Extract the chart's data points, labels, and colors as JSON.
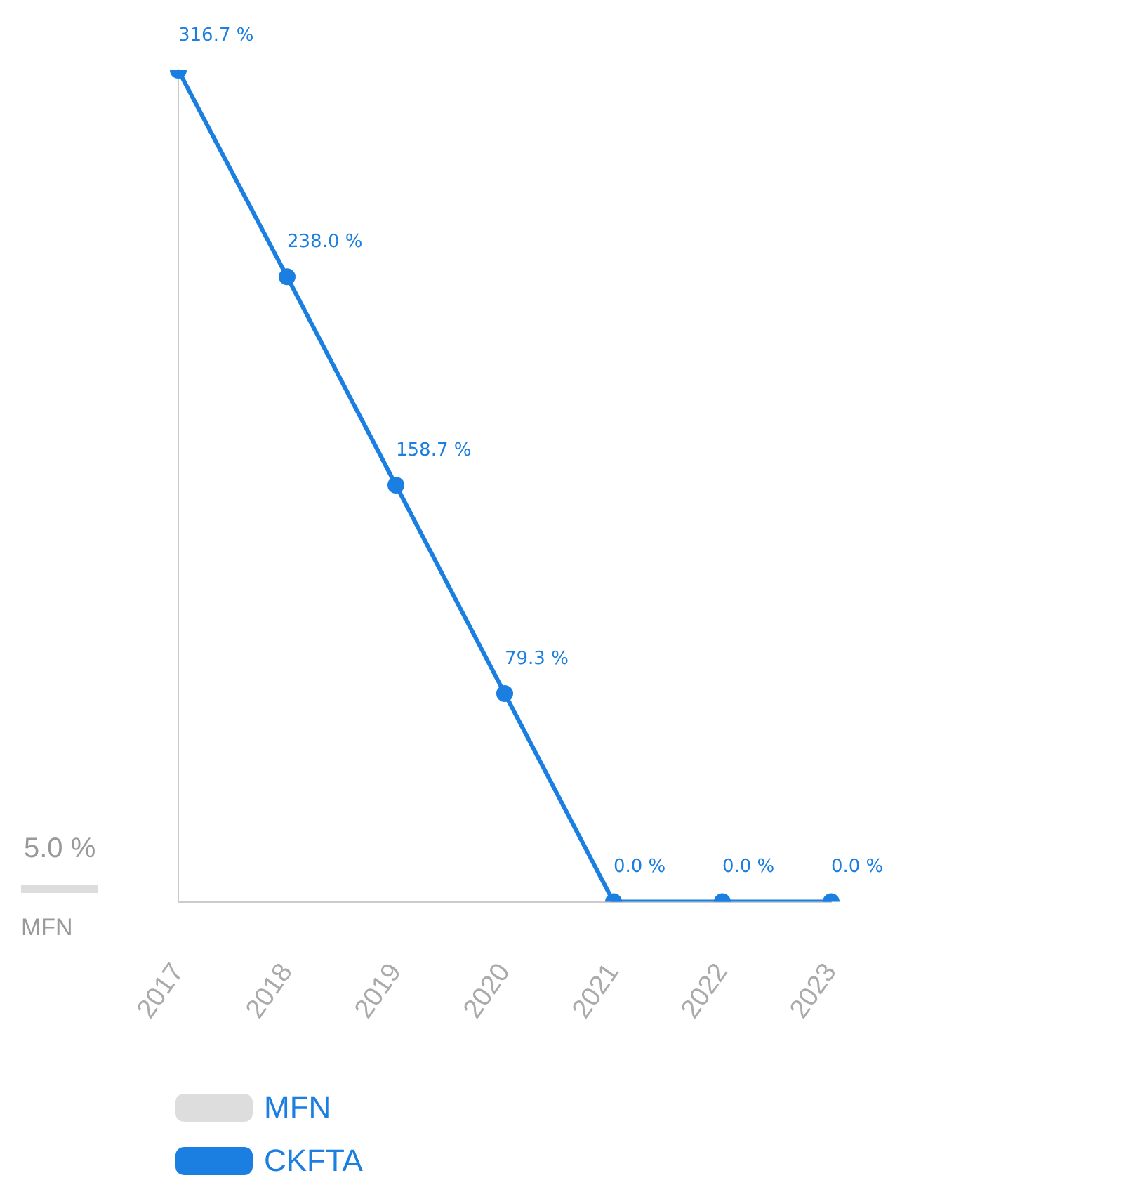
{
  "chart_data": {
    "type": "line",
    "categories": [
      "2017",
      "2018",
      "2019",
      "2020",
      "2021",
      "2022",
      "2023"
    ],
    "series": [
      {
        "name": "CKFTA",
        "color": "#1a7fe0",
        "values": [
          316.7,
          238.0,
          158.7,
          79.3,
          0.0,
          0.0,
          0.0
        ],
        "value_labels": [
          "316.7 %",
          "238.0 %",
          "158.7 %",
          "79.3 %",
          "0.0 %",
          "0.0 %",
          "0.0 %"
        ]
      }
    ],
    "ylim": [
      0,
      316.7
    ],
    "tick_labels": "x",
    "grid": false,
    "marker": "circle",
    "line_style": "solid",
    "legend": "bottom",
    "ref_lines": [
      {
        "axis": "y",
        "value": 5.0,
        "label": "MFN",
        "color": "#dddddd"
      }
    ],
    "annotations": [
      {
        "text": "5.0 %",
        "y": 5.0
      }
    ]
  }
}
